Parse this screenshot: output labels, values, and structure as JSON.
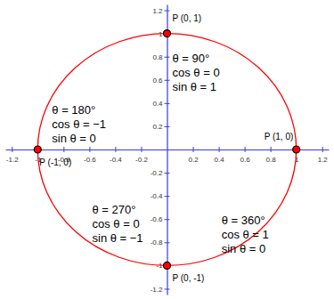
{
  "chart_data": {
    "type": "scatter",
    "x": [
      0,
      -1,
      0,
      1
    ],
    "values": [
      1,
      0,
      -1,
      0
    ],
    "labels": [
      "P (0, 1)",
      "P (-1, 0)",
      "P (0, -1)",
      "P (1, 0)"
    ],
    "annotations": [
      [
        "θ = 90°",
        "cos θ = 0",
        "sin θ = 1"
      ],
      [
        "θ = 180°",
        "cos θ = −1",
        "sin θ = 0"
      ],
      [
        "θ = 270°",
        "cos θ = 0",
        "sin θ = −1"
      ],
      [
        "θ = 360°",
        "cos θ = 1",
        "sin θ = 0"
      ]
    ],
    "radius": 1,
    "color": "#ff0000",
    "marker": "circle",
    "xlim": [
      -1.25,
      1.25
    ],
    "ylim": [
      -1.25,
      1.25
    ],
    "xticks": [
      -1.2,
      -1,
      -0.8,
      -0.6,
      -0.4,
      -0.2,
      0.2,
      0.4,
      0.6,
      0.8,
      1,
      1.2
    ],
    "yticks": [
      -1.2,
      -1,
      -0.8,
      -0.6,
      -0.4,
      -0.2,
      0.2,
      0.4,
      0.6,
      0.8,
      1,
      1.2
    ]
  }
}
